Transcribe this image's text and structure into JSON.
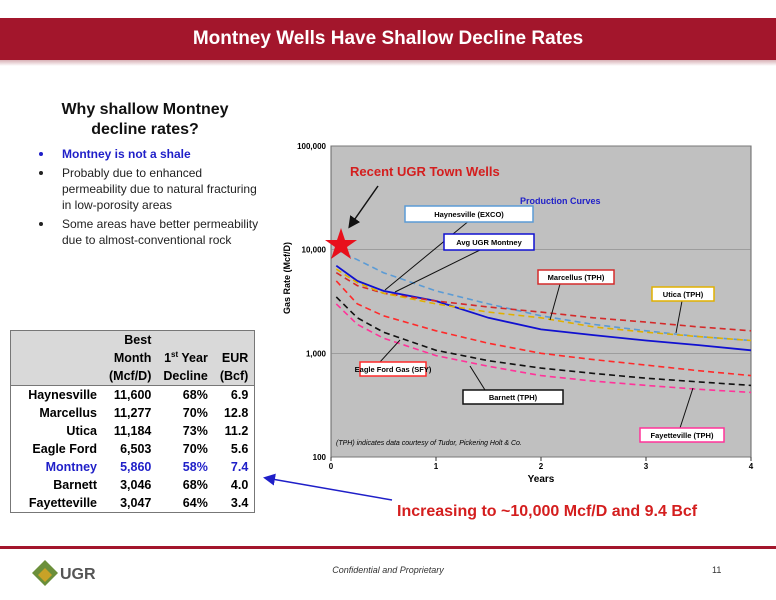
{
  "header": {
    "title": "Montney Wells Have Shallow Decline Rates"
  },
  "left": {
    "heading": "Why shallow Montney decline rates?",
    "bullets": [
      "Montney is not a shale",
      "Probably due to enhanced permeability due to natural fracturing in low-porosity areas",
      "Some areas have better permeability due to almost-conventional rock"
    ]
  },
  "table": {
    "best": [
      "Best",
      "Month",
      "(Mcf/D)"
    ],
    "decline": {
      "num": "1",
      "sup": "st",
      "word": "Year",
      "unit": "Decline"
    },
    "eur": [
      "EUR",
      "(Bcf)"
    ],
    "rows": [
      [
        "Haynesville",
        "11,600",
        "68%",
        "6.9"
      ],
      [
        "Marcellus",
        "11,277",
        "70%",
        "12.8"
      ],
      [
        "Utica",
        "11,184",
        "73%",
        "11.2"
      ],
      [
        "Eagle Ford",
        "6,503",
        "70%",
        "5.6"
      ],
      [
        "Montney",
        "5,860",
        "58%",
        "7.4"
      ],
      [
        "Barnett",
        "3,046",
        "68%",
        "4.0"
      ],
      [
        "Fayetteville",
        "3,047",
        "64%",
        "3.4"
      ]
    ],
    "highlight_row": 4
  },
  "chart_data": {
    "type": "line",
    "log_y": true,
    "grid": true,
    "title": "Production Curves",
    "x_label": "Years",
    "y_label": "Gas Rate (Mcf/D)",
    "annotations": [
      "Recent UGR Town Wells",
      "(TPH) indicates data courtesy of Tudor, Pickering Holt & Co.",
      "Increasing to ~10,000 Mcf/D and 9.4 Bcf"
    ],
    "x": [
      0.05,
      0.25,
      0.5,
      1,
      1.5,
      2,
      2.5,
      3,
      3.5,
      4
    ],
    "xlim": [
      0,
      4
    ],
    "xticks": [
      0,
      1,
      2,
      3,
      4
    ],
    "ylim": [
      100,
      100000
    ],
    "yticks": [
      100,
      {
        "value": 1000,
        "label": "1,000"
      },
      {
        "value": 10000,
        "label": "10,000"
      },
      {
        "value": 100000,
        "label": "100,000"
      }
    ],
    "series": [
      {
        "name": "Haynesville (EXCO)",
        "color": "#5b9bd5",
        "dash": true,
        "values": [
          10000,
          8000,
          6000,
          4000,
          3000,
          2300,
          1900,
          1650,
          1450,
          1330
        ]
      },
      {
        "name": "Avg UGR Montney",
        "color": "#1010d0",
        "dash": false,
        "values": [
          7000,
          5000,
          4000,
          3200,
          2200,
          1700,
          1500,
          1330,
          1200,
          1070
        ]
      },
      {
        "name": "Marcellus (TPH)",
        "color": "#d42a2a",
        "dash": true,
        "values": [
          6000,
          4500,
          3800,
          3200,
          2800,
          2500,
          2200,
          2000,
          1800,
          1650
        ]
      },
      {
        "name": "Utica (TPH)",
        "color": "#e0b000",
        "dash": true,
        "values": [
          6500,
          4800,
          3800,
          3000,
          2500,
          2200,
          1800,
          1600,
          1450,
          1330
        ]
      },
      {
        "name": "Eagle Ford Gas (SFY)",
        "color": "#ff2a2a",
        "dash": true,
        "values": [
          5000,
          3000,
          2300,
          1650,
          1250,
          1000,
          870,
          770,
          680,
          610
        ]
      },
      {
        "name": "Barnett (TPH)",
        "color": "#111111",
        "dash": true,
        "values": [
          3500,
          2200,
          1600,
          1070,
          850,
          720,
          640,
          575,
          530,
          490
        ]
      },
      {
        "name": "Fayetteville (TPH)",
        "color": "#ff3399",
        "dash": true,
        "values": [
          3000,
          1900,
          1400,
          950,
          750,
          610,
          540,
          490,
          450,
          420
        ]
      }
    ]
  },
  "footer": {
    "text": "Confidential and Proprietary",
    "page": "11",
    "logo": "UGR"
  }
}
